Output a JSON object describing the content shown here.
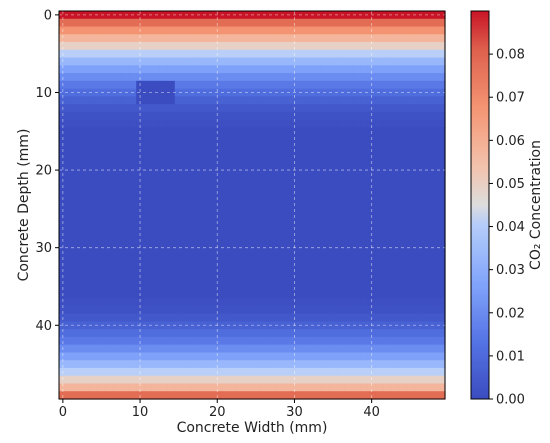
{
  "chart_data": {
    "type": "heatmap",
    "title": "",
    "xlabel": "Concrete Width (mm)",
    "ylabel": "Concrete Depth (mm)",
    "colorbar_label": "CO₂ Concentration",
    "xlim": [
      -0.5,
      49.5
    ],
    "ylim": [
      49.5,
      -0.5
    ],
    "x_ticks": [
      0,
      10,
      20,
      30,
      40
    ],
    "x_tick_labels": [
      "0",
      "10",
      "20",
      "30",
      "40"
    ],
    "y_ticks": [
      0,
      10,
      20,
      30,
      40
    ],
    "y_tick_labels": [
      "0",
      "10",
      "20",
      "30",
      "40"
    ],
    "colorbar_ticks": [
      0.0,
      0.01,
      0.02,
      0.03,
      0.04,
      0.05,
      0.06,
      0.07,
      0.08
    ],
    "colorbar_tick_labels": [
      "0.00",
      "0.01",
      "0.02",
      "0.03",
      "0.04",
      "0.05",
      "0.06",
      "0.07",
      "0.08"
    ],
    "value_range": [
      0.0,
      0.09
    ],
    "colormap": "coolwarm",
    "grid": true,
    "grid_size": [
      50,
      50
    ],
    "row_profile_depth_mm": [
      0,
      1,
      2,
      3,
      4,
      5,
      6,
      7,
      8,
      9,
      10,
      11,
      12,
      13,
      14,
      15,
      16,
      17,
      18,
      19,
      20,
      21,
      22,
      23,
      24,
      25,
      26,
      27,
      28,
      29,
      30,
      31,
      32,
      33,
      34,
      35,
      36,
      37,
      38,
      39,
      40,
      41,
      42,
      43,
      44,
      45,
      46,
      47,
      48,
      49
    ],
    "row_profile_values": [
      0.09,
      0.078,
      0.068,
      0.058,
      0.049,
      0.041,
      0.033,
      0.026,
      0.02,
      0.015,
      0.011,
      0.007,
      0.004,
      0.002,
      0.001,
      0.0,
      0.0,
      0.0,
      0.0,
      0.0,
      0.0,
      0.0,
      0.0,
      0.0,
      0.0,
      0.0,
      0.0,
      0.0,
      0.0,
      0.0,
      0.0,
      0.0,
      0.0,
      0.0,
      0.0,
      0.0,
      0.0,
      0.001,
      0.002,
      0.004,
      0.007,
      0.011,
      0.015,
      0.02,
      0.026,
      0.033,
      0.041,
      0.049,
      0.058,
      0.078
    ],
    "local_anomaly": {
      "depth_range_mm": [
        9,
        11
      ],
      "width_range_mm": [
        10,
        14
      ],
      "value": 0.0
    }
  }
}
